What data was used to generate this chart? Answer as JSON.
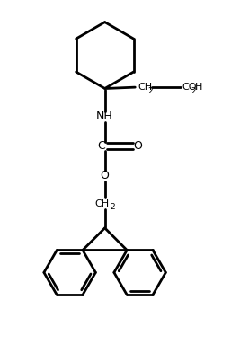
{
  "bg_color": "#ffffff",
  "line_color": "#000000",
  "line_width": 2.0,
  "fig_width": 2.77,
  "fig_height": 3.83,
  "dpi": 100,
  "xlim": [
    0,
    10
  ],
  "ylim": [
    0,
    14
  ]
}
